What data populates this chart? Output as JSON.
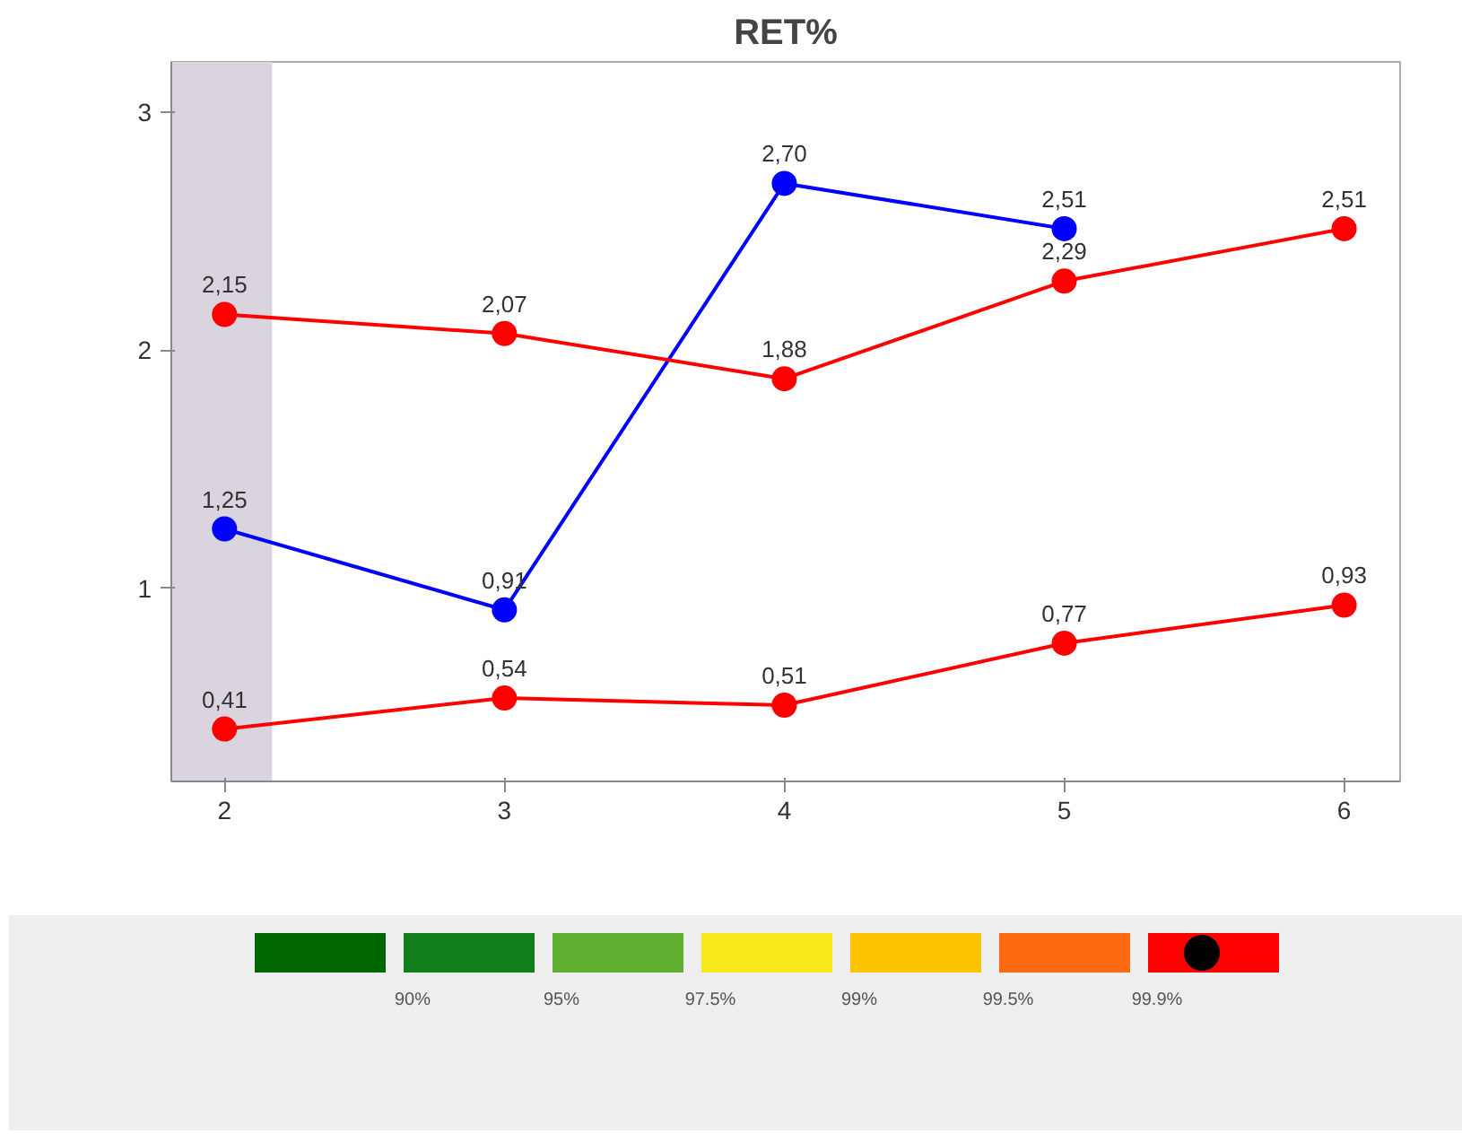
{
  "chart_data": {
    "type": "line",
    "title": "RET%",
    "x": [
      2,
      3,
      4,
      5,
      6
    ],
    "series": [
      {
        "color": "#0000ff",
        "values": [
          1.25,
          0.91,
          2.7,
          2.51,
          null
        ],
        "value_labels": [
          "1,25",
          "0,91",
          "2,70",
          "2,51",
          null
        ]
      },
      {
        "color": "#ff0000",
        "values": [
          2.15,
          2.07,
          1.88,
          2.29,
          2.51
        ],
        "value_labels": [
          "2,15",
          "2,07",
          "1,88",
          "2,29",
          "2,51"
        ]
      },
      {
        "color": "#ff0000",
        "values": [
          0.41,
          0.54,
          0.51,
          0.77,
          0.93
        ],
        "value_labels": [
          "0,41",
          "0,54",
          "0,51",
          "0,77",
          "0,93"
        ]
      }
    ],
    "xlim": [
      1.81,
      6.2
    ],
    "ylim": [
      0.19,
      3.21
    ],
    "xticks": [
      2,
      3,
      4,
      5,
      6
    ],
    "yticks": [
      1,
      2,
      3
    ],
    "bands": [
      {
        "axis": "x",
        "from": 1.81,
        "to": 2.17,
        "color": "#d9d4de"
      }
    ],
    "marker": "circle",
    "line_style": "solid",
    "grid": false,
    "annotations": [
      "90%",
      "95%",
      "97.5%",
      "99%",
      "99.5%",
      "99.9%"
    ]
  }
}
